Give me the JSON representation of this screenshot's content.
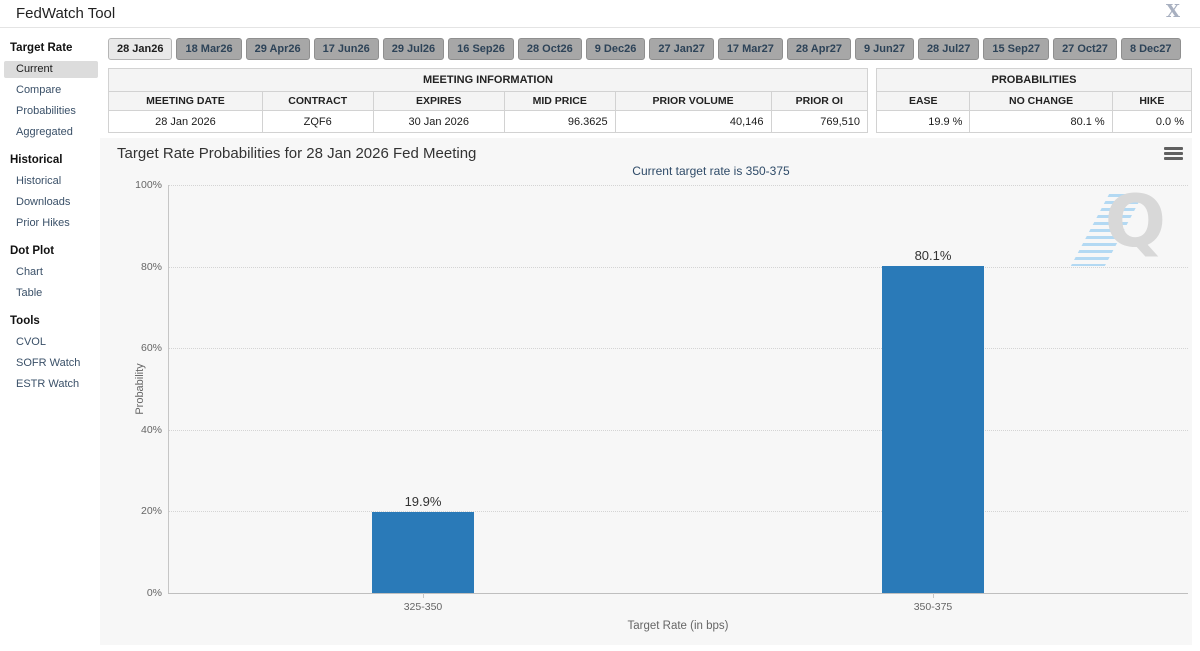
{
  "header": {
    "title": "FedWatch Tool",
    "close_icon_glyph": "X"
  },
  "sidebar": {
    "sections": [
      {
        "title": "Target Rate",
        "items": [
          {
            "label": "Current",
            "selected": true
          },
          {
            "label": "Compare"
          },
          {
            "label": "Probabilities"
          },
          {
            "label": "Aggregated"
          }
        ]
      },
      {
        "title": "Historical",
        "items": [
          {
            "label": "Historical"
          },
          {
            "label": "Downloads"
          },
          {
            "label": "Prior Hikes"
          }
        ]
      },
      {
        "title": "Dot Plot",
        "items": [
          {
            "label": "Chart"
          },
          {
            "label": "Table"
          }
        ]
      },
      {
        "title": "Tools",
        "items": [
          {
            "label": "CVOL"
          },
          {
            "label": "SOFR Watch"
          },
          {
            "label": "ESTR Watch"
          }
        ]
      }
    ]
  },
  "meeting_tabs": {
    "selected": "28 Jan26",
    "tabs": [
      "28 Jan26",
      "18 Mar26",
      "29 Apr26",
      "17 Jun26",
      "29 Jul26",
      "16 Sep26",
      "28 Oct26",
      "9 Dec26",
      "27 Jan27",
      "17 Mar27",
      "28 Apr27",
      "9 Jun27",
      "28 Jul27",
      "15 Sep27",
      "27 Oct27",
      "8 Dec27"
    ]
  },
  "meeting_information": {
    "title": "MEETING INFORMATION",
    "columns": [
      "MEETING DATE",
      "CONTRACT",
      "EXPIRES",
      "MID PRICE",
      "PRIOR VOLUME",
      "PRIOR OI"
    ],
    "values": [
      "28 Jan 2026",
      "ZQF6",
      "30 Jan 2026",
      "96.3625",
      "40,146",
      "769,510"
    ]
  },
  "probabilities_summary": {
    "title": "PROBABILITIES",
    "columns": [
      "EASE",
      "NO CHANGE",
      "HIKE"
    ],
    "values": [
      "19.9 %",
      "80.1 %",
      "0.0 %"
    ]
  },
  "chart_data": {
    "type": "bar",
    "title": "Target Rate Probabilities for 28 Jan 2026 Fed Meeting",
    "subtitle": "Current target rate is 350-375",
    "categories": [
      "325-350",
      "350-375"
    ],
    "values": [
      19.9,
      80.1
    ],
    "value_labels": [
      "19.9%",
      "80.1%"
    ],
    "xlabel": "Target Rate (in bps)",
    "ylabel": "Probability",
    "ylim": [
      0,
      100
    ],
    "yticks": [
      "0%",
      "20%",
      "40%",
      "60%",
      "80%",
      "100%"
    ],
    "grid": "dotted horizontal",
    "legend": "none",
    "bar_color": "#2a7ab8",
    "background_color": "#f7f7f7",
    "watermark_letter": "Q"
  }
}
